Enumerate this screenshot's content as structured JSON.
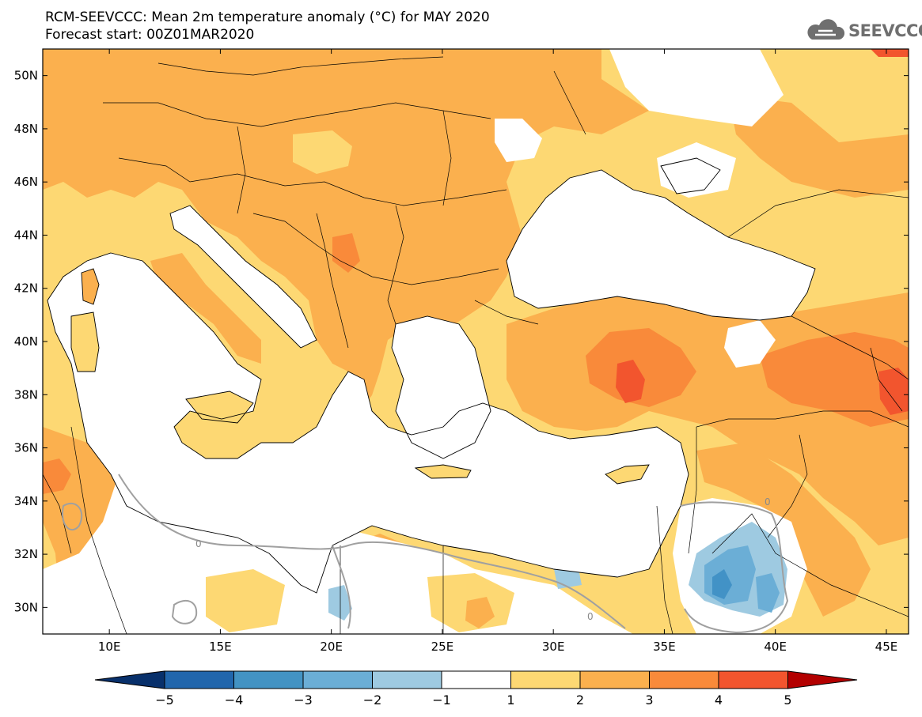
{
  "header": {
    "title": "RCM-SEEVCCC: Mean 2m temperature anomaly (°C) for MAY 2020",
    "subtitle": "Forecast start: 00Z01MAR2020",
    "logo_text": "SEEVCCC",
    "logo_icon": "cloud-icon"
  },
  "map": {
    "lon_range": [
      7,
      46
    ],
    "lat_range": [
      29,
      51
    ],
    "lon_ticks": [
      "10E",
      "15E",
      "20E",
      "25E",
      "30E",
      "35E",
      "40E",
      "45E"
    ],
    "lat_ticks": [
      "30N",
      "32N",
      "34N",
      "36N",
      "38N",
      "40N",
      "42N",
      "44N",
      "46N",
      "48N",
      "50N"
    ],
    "contour_label": "0",
    "colors": {
      "land_1_2": "#fdd873",
      "land_2_3": "#fbb04e",
      "land_3_4": "#f98a3a",
      "land_4_5": "#f2552e",
      "neg_1_2": "#9ecae1",
      "neg_2_3": "#6baed6",
      "neg_3_4": "#4292c6",
      "sea": "#ffffff",
      "border": "#000000",
      "contour": "#a0a0a0"
    }
  },
  "colorbar": {
    "labels": [
      "−5",
      "−4",
      "−3",
      "−2",
      "−1",
      "1",
      "2",
      "3",
      "4",
      "5"
    ],
    "colors": [
      "#08306b",
      "#2166ac",
      "#4393c3",
      "#6baed6",
      "#9ecae1",
      "#ffffff",
      "#fdd873",
      "#fbb04e",
      "#f98a3a",
      "#f2552e",
      "#d7191c",
      "#b30000"
    ]
  }
}
